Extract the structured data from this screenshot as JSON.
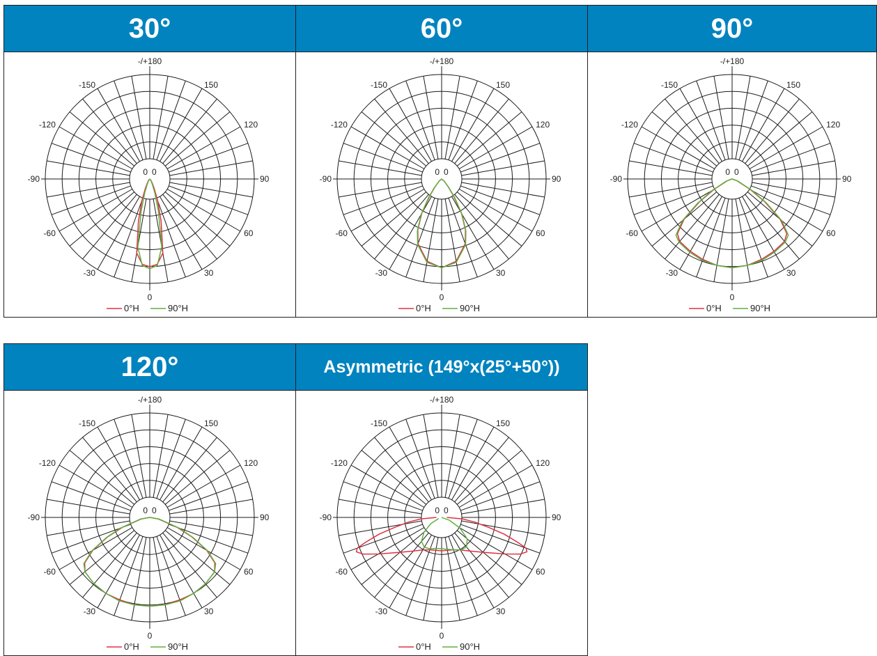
{
  "colors": {
    "header_bg": "#0083bf",
    "header_text": "#ffffff",
    "grid": "#1a1a1a",
    "series_0H": "#e03040",
    "series_90H": "#5fb040"
  },
  "chart_data": [
    {
      "type": "polar",
      "title": "30°",
      "angle_labels": [
        "-/+180",
        "150",
        "120",
        "90",
        "60",
        "30",
        "0",
        "-30",
        "-60",
        "-90",
        "-120",
        "-150"
      ],
      "center_labels": [
        "0",
        "0"
      ],
      "grid": true,
      "legend_position": "bottom",
      "series": [
        {
          "name": "0°H",
          "points": [
            [
              0,
              0.84
            ],
            [
              5,
              0.82
            ],
            [
              10,
              0.72
            ],
            [
              15,
              0.42
            ],
            [
              20,
              0.22
            ],
            [
              25,
              0.1
            ],
            [
              30,
              0.05
            ],
            [
              40,
              0.02
            ],
            [
              50,
              0
            ]
          ]
        },
        {
          "name": "90°H",
          "points": [
            [
              0,
              0.86
            ],
            [
              5,
              0.83
            ],
            [
              10,
              0.66
            ],
            [
              15,
              0.32
            ],
            [
              20,
              0.14
            ],
            [
              25,
              0.06
            ],
            [
              30,
              0.03
            ],
            [
              40,
              0.01
            ],
            [
              50,
              0
            ]
          ]
        }
      ]
    },
    {
      "type": "polar",
      "title": "60°",
      "angle_labels": [
        "-/+180",
        "150",
        "120",
        "90",
        "60",
        "30",
        "0",
        "-30",
        "-60",
        "-90",
        "-120",
        "-150"
      ],
      "center_labels": [
        "0",
        "0"
      ],
      "grid": true,
      "legend_position": "bottom",
      "series": [
        {
          "name": "0°H",
          "points": [
            [
              0,
              0.85
            ],
            [
              10,
              0.8
            ],
            [
              20,
              0.66
            ],
            [
              25,
              0.54
            ],
            [
              30,
              0.38
            ],
            [
              35,
              0.2
            ],
            [
              40,
              0.1
            ],
            [
              50,
              0.03
            ],
            [
              60,
              0
            ]
          ]
        },
        {
          "name": "90°H",
          "points": [
            [
              0,
              0.85
            ],
            [
              10,
              0.81
            ],
            [
              20,
              0.67
            ],
            [
              25,
              0.55
            ],
            [
              30,
              0.39
            ],
            [
              35,
              0.22
            ],
            [
              40,
              0.11
            ],
            [
              50,
              0.03
            ],
            [
              60,
              0
            ]
          ]
        }
      ]
    },
    {
      "type": "polar",
      "title": "90°",
      "angle_labels": [
        "-/+180",
        "150",
        "120",
        "90",
        "60",
        "30",
        "0",
        "-30",
        "-60",
        "-90",
        "-120",
        "-150"
      ],
      "center_labels": [
        "0",
        "0"
      ],
      "grid": true,
      "legend_position": "bottom",
      "series": [
        {
          "name": "0°H",
          "points": [
            [
              0,
              0.85
            ],
            [
              10,
              0.84
            ],
            [
              20,
              0.82
            ],
            [
              30,
              0.8
            ],
            [
              40,
              0.78
            ],
            [
              45,
              0.74
            ],
            [
              50,
              0.6
            ],
            [
              55,
              0.38
            ],
            [
              60,
              0.2
            ],
            [
              70,
              0.05
            ],
            [
              80,
              0
            ]
          ]
        },
        {
          "name": "90°H",
          "points": [
            [
              0,
              0.85
            ],
            [
              10,
              0.84
            ],
            [
              20,
              0.83
            ],
            [
              30,
              0.81
            ],
            [
              40,
              0.79
            ],
            [
              45,
              0.76
            ],
            [
              50,
              0.62
            ],
            [
              55,
              0.4
            ],
            [
              60,
              0.22
            ],
            [
              70,
              0.06
            ],
            [
              80,
              0
            ]
          ]
        }
      ]
    },
    {
      "type": "polar",
      "title": "120°",
      "angle_labels": [
        "-/+180",
        "150",
        "120",
        "90",
        "60",
        "30",
        "0",
        "-30",
        "-60",
        "-90",
        "-120",
        "-150"
      ],
      "center_labels": [
        "0",
        "0"
      ],
      "grid": true,
      "legend_position": "bottom",
      "series": [
        {
          "name": "0°H",
          "points": [
            [
              0,
              0.85
            ],
            [
              10,
              0.85
            ],
            [
              20,
              0.84
            ],
            [
              30,
              0.84
            ],
            [
              40,
              0.83
            ],
            [
              50,
              0.81
            ],
            [
              55,
              0.76
            ],
            [
              60,
              0.63
            ],
            [
              65,
              0.45
            ],
            [
              70,
              0.28
            ],
            [
              80,
              0.08
            ],
            [
              90,
              0
            ]
          ]
        },
        {
          "name": "90°H",
          "points": [
            [
              0,
              0.85
            ],
            [
              10,
              0.85
            ],
            [
              20,
              0.85
            ],
            [
              30,
              0.84
            ],
            [
              40,
              0.83
            ],
            [
              50,
              0.81
            ],
            [
              55,
              0.77
            ],
            [
              60,
              0.64
            ],
            [
              65,
              0.46
            ],
            [
              70,
              0.3
            ],
            [
              80,
              0.09
            ],
            [
              90,
              0
            ]
          ]
        }
      ]
    },
    {
      "type": "polar",
      "title": "Asymmetric (149°x(25°+50°))",
      "angle_labels": [
        "-/+180",
        "150",
        "120",
        "90",
        "60",
        "30",
        "0",
        "-30",
        "-60",
        "-90",
        "-120",
        "-150"
      ],
      "center_labels": [
        "0",
        "0"
      ],
      "grid": true,
      "legend_position": "bottom",
      "series": [
        {
          "name": "0°H",
          "points": [
            [
              0,
              0.32
            ],
            [
              10,
              0.32
            ],
            [
              20,
              0.33
            ],
            [
              30,
              0.36
            ],
            [
              40,
              0.42
            ],
            [
              50,
              0.52
            ],
            [
              60,
              0.7
            ],
            [
              65,
              0.83
            ],
            [
              68,
              0.88
            ],
            [
              70,
              0.86
            ],
            [
              72,
              0.76
            ],
            [
              75,
              0.62
            ],
            [
              78,
              0.46
            ],
            [
              82,
              0.32
            ],
            [
              86,
              0.2
            ],
            [
              90,
              0.05
            ]
          ]
        },
        {
          "name": "90°H",
          "points": [
            [
              -70,
              0.03
            ],
            [
              -60,
              0.12
            ],
            [
              -50,
              0.22
            ],
            [
              -40,
              0.3
            ],
            [
              -30,
              0.33
            ],
            [
              -20,
              0.32
            ],
            [
              -10,
              0.3
            ],
            [
              0,
              0.3
            ],
            [
              10,
              0.31
            ],
            [
              20,
              0.33
            ],
            [
              30,
              0.36
            ],
            [
              40,
              0.37
            ],
            [
              50,
              0.32
            ],
            [
              60,
              0.2
            ],
            [
              70,
              0.08
            ],
            [
              80,
              0
            ]
          ]
        }
      ]
    }
  ]
}
